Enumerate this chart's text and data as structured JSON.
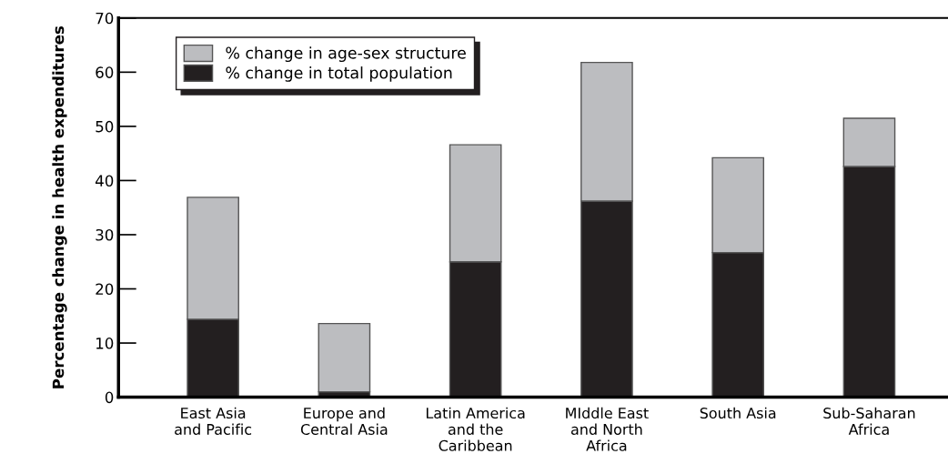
{
  "chart_data": {
    "type": "bar",
    "stacked": true,
    "ylabel": "Percentage change in health expenditures",
    "categories": [
      "East Asia\nand Pacific",
      "Europe and\nCentral Asia",
      "Latin America\nand the\nCaribbean",
      "MIddle East\nand North\nAfrica",
      "South Asia",
      "Sub-Saharan\nAfrica"
    ],
    "series": [
      {
        "name": "% change in total population",
        "color": "#231f20",
        "values": [
          14.4,
          1.0,
          25.0,
          36.2,
          26.7,
          42.6
        ]
      },
      {
        "name": "% change in age-sex structure",
        "color": "#bcbdc0",
        "values": [
          22.5,
          12.6,
          21.6,
          25.6,
          17.5,
          8.9
        ]
      }
    ],
    "ylim": [
      0,
      70
    ],
    "yticks": [
      0,
      10,
      20,
      30,
      40,
      50,
      60,
      70
    ],
    "grid": false,
    "legend": "top left"
  }
}
